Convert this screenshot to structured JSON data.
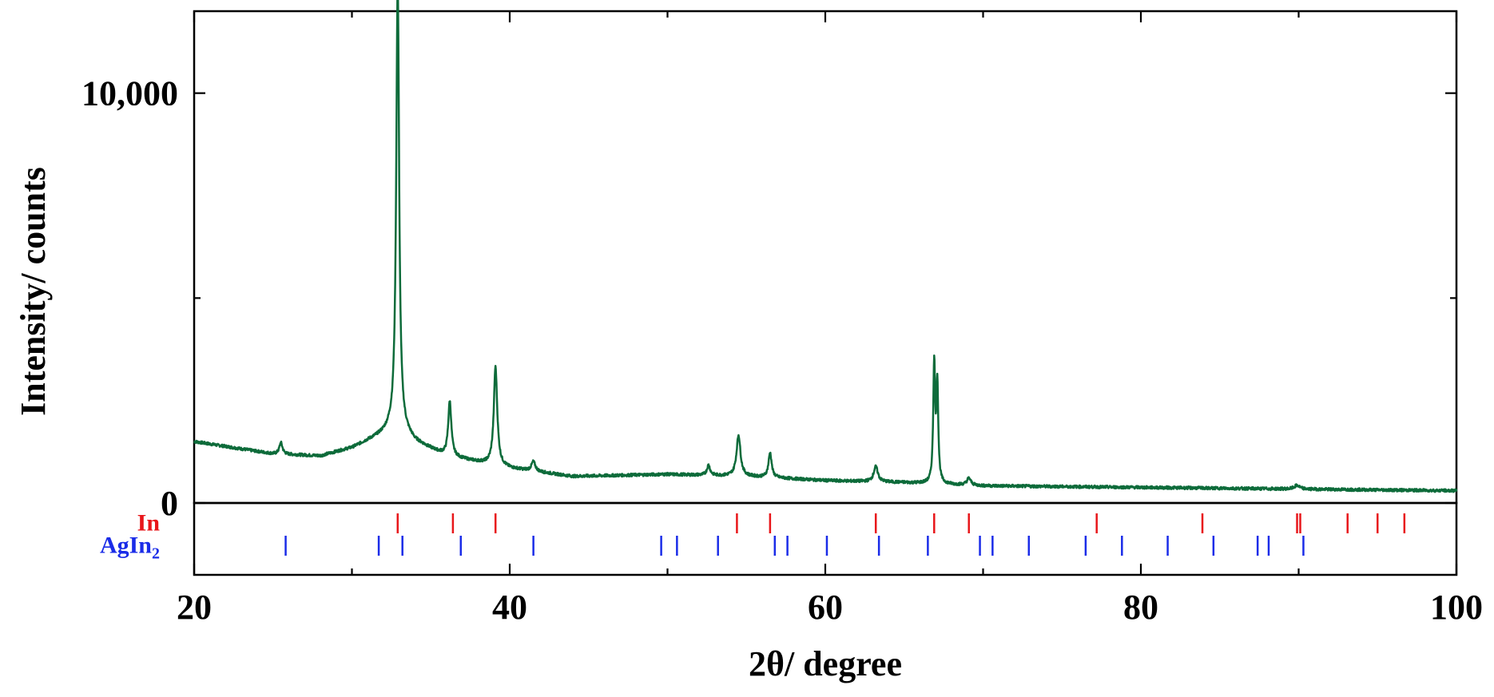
{
  "chart_data": {
    "type": "line",
    "xlabel": "2θ/ degree",
    "ylabel": "Intensity/ counts",
    "xlim": [
      20,
      100
    ],
    "ylim": [
      0,
      12000
    ],
    "x_ticks": [
      20,
      40,
      60,
      80,
      100
    ],
    "x_tick_labels": [
      "20",
      "40",
      "60",
      "80",
      "100"
    ],
    "y_ticks": [
      0,
      10000
    ],
    "y_tick_labels": [
      "0",
      "10,000"
    ],
    "colors": {
      "pattern": "#0d6b3a",
      "In": "#e8161a",
      "AgIn2": "#1a2ce8"
    },
    "baseline": [
      [
        20,
        1500
      ],
      [
        25,
        1200
      ],
      [
        28,
        1150
      ],
      [
        30,
        1350
      ],
      [
        32,
        1700
      ],
      [
        32.8,
        1900
      ],
      [
        34,
        1500
      ],
      [
        36,
        1150
      ],
      [
        40,
        850
      ],
      [
        44,
        650
      ],
      [
        50,
        700
      ],
      [
        55,
        650
      ],
      [
        60,
        550
      ],
      [
        65,
        500
      ],
      [
        70,
        420
      ],
      [
        80,
        380
      ],
      [
        90,
        340
      ],
      [
        100,
        300
      ]
    ],
    "peaks": [
      {
        "x": 25.5,
        "height": 280,
        "width": 0.12
      },
      {
        "x": 32.9,
        "height": 10800,
        "width": 0.11
      },
      {
        "x": 36.2,
        "height": 1350,
        "width": 0.12
      },
      {
        "x": 39.1,
        "height": 2400,
        "width": 0.13
      },
      {
        "x": 41.5,
        "height": 230,
        "width": 0.15
      },
      {
        "x": 52.6,
        "height": 250,
        "width": 0.12
      },
      {
        "x": 54.5,
        "height": 1000,
        "width": 0.15
      },
      {
        "x": 56.5,
        "height": 600,
        "width": 0.12
      },
      {
        "x": 63.2,
        "height": 370,
        "width": 0.16
      },
      {
        "x": 66.9,
        "height": 2900,
        "width": 0.07
      },
      {
        "x": 67.1,
        "height": 2400,
        "width": 0.07
      },
      {
        "x": 69.1,
        "height": 170,
        "width": 0.15
      },
      {
        "x": 89.9,
        "height": 90,
        "width": 0.2
      }
    ],
    "reference_phases": [
      {
        "label": "In",
        "color": "#e8161a",
        "positions": [
          32.9,
          36.4,
          39.1,
          54.4,
          56.5,
          63.2,
          66.9,
          69.1,
          77.2,
          83.9,
          89.9,
          90.1,
          93.1,
          95.0,
          96.7
        ]
      },
      {
        "label": "AgIn",
        "subscript": "2",
        "color": "#1a2ce8",
        "positions": [
          25.8,
          31.7,
          33.2,
          36.9,
          41.5,
          49.6,
          50.6,
          53.2,
          56.8,
          57.6,
          60.1,
          63.4,
          66.5,
          69.8,
          70.6,
          72.9,
          76.5,
          78.8,
          81.7,
          84.6,
          87.4,
          88.1,
          90.3
        ]
      }
    ]
  }
}
